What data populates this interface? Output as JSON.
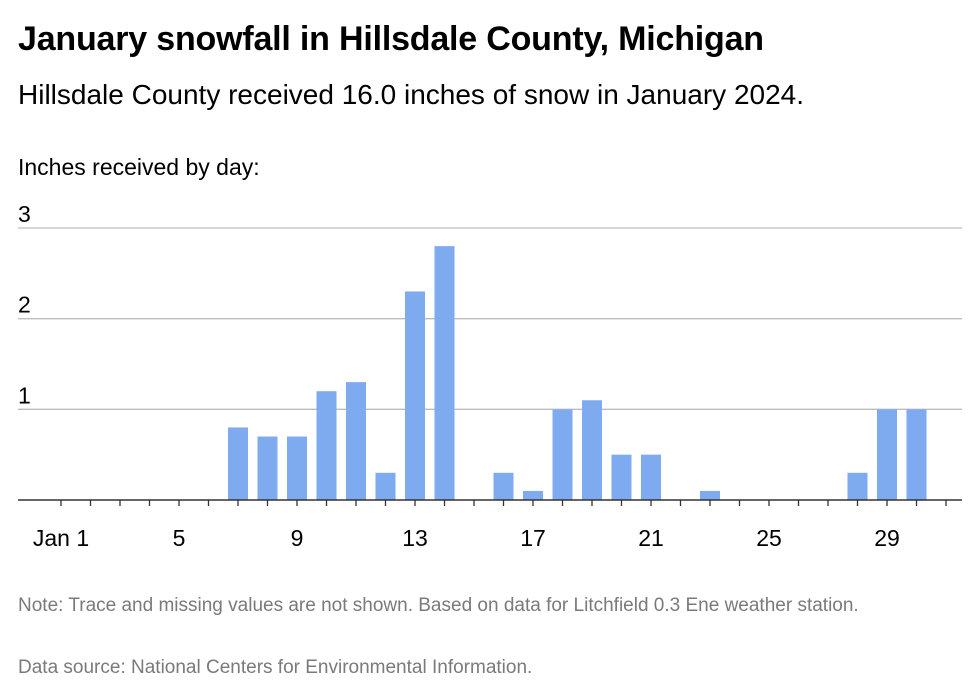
{
  "title": "January snowfall in Hillsdale County, Michigan",
  "subtitle": "Hillsdale County received 16.0 inches of snow in January 2024.",
  "note": "Note: Trace and missing values are not shown. Based on data for Litchfield 0.3 Ene weather station.",
  "source": "Data source: National Centers for Environmental Information.",
  "colors": {
    "bar": "#7eaaf0",
    "grid": "#bdbdbd",
    "axis": "#333333",
    "note": "#7a7a7a"
  },
  "chart_data": {
    "type": "bar",
    "ylabel": "Inches received by day:",
    "xlabel": "",
    "x": [
      1,
      2,
      3,
      4,
      5,
      6,
      7,
      8,
      9,
      10,
      11,
      12,
      13,
      14,
      15,
      16,
      17,
      18,
      19,
      20,
      21,
      22,
      23,
      24,
      25,
      26,
      27,
      28,
      29,
      30,
      31
    ],
    "values": [
      0,
      0,
      0,
      0,
      0,
      0,
      0.8,
      0.7,
      0.7,
      1.2,
      1.3,
      0.3,
      2.3,
      2.8,
      0,
      0.3,
      0.1,
      1.0,
      1.1,
      0.5,
      0.5,
      0,
      0.1,
      0,
      0,
      0,
      0,
      0.3,
      1.0,
      1.0,
      0
    ],
    "ylim": [
      0,
      3
    ],
    "yticks": [
      1,
      2,
      3
    ],
    "ytick_labels": [
      "1",
      "2",
      "3"
    ],
    "xticks": [
      1,
      5,
      9,
      13,
      17,
      21,
      25,
      29
    ],
    "xtick_labels": [
      "Jan 1",
      "5",
      "9",
      "13",
      "17",
      "21",
      "25",
      "29"
    ],
    "grid": true,
    "legend": "none"
  }
}
